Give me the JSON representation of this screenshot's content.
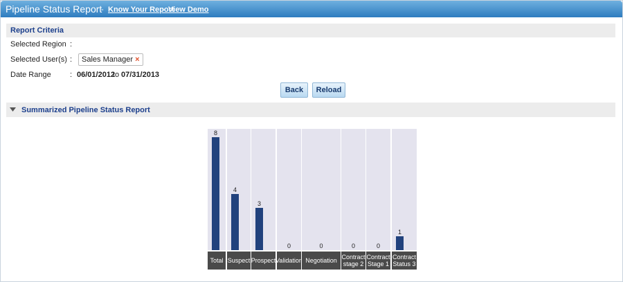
{
  "header": {
    "title": "Pipeline Status Report",
    "separator": "-",
    "links": [
      "Know Your Report",
      "View Demo"
    ]
  },
  "criteria": {
    "title": "Report Criteria",
    "colon": ":",
    "region_label": "Selected Region",
    "users_label": "Selected User(s)",
    "user_tag": "Sales Manager",
    "remove_icon": "×",
    "date_label": "Date Range",
    "date_from": "06/01/2012",
    "date_to_word": "to",
    "date_to": "07/31/2013"
  },
  "buttons": [
    "Back",
    "Reload"
  ],
  "section": {
    "title": "Summarized Pipeline Status Report"
  },
  "chart_data": {
    "type": "bar",
    "categories": [
      "Total",
      "Suspect",
      "Prospect",
      "Validation",
      "Negotiation",
      "Contract stage 2",
      "Contract Stage 1",
      "Contract Status 3"
    ],
    "values": [
      8,
      4,
      3,
      0,
      0,
      0,
      0,
      1
    ],
    "color": "#21427d"
  }
}
